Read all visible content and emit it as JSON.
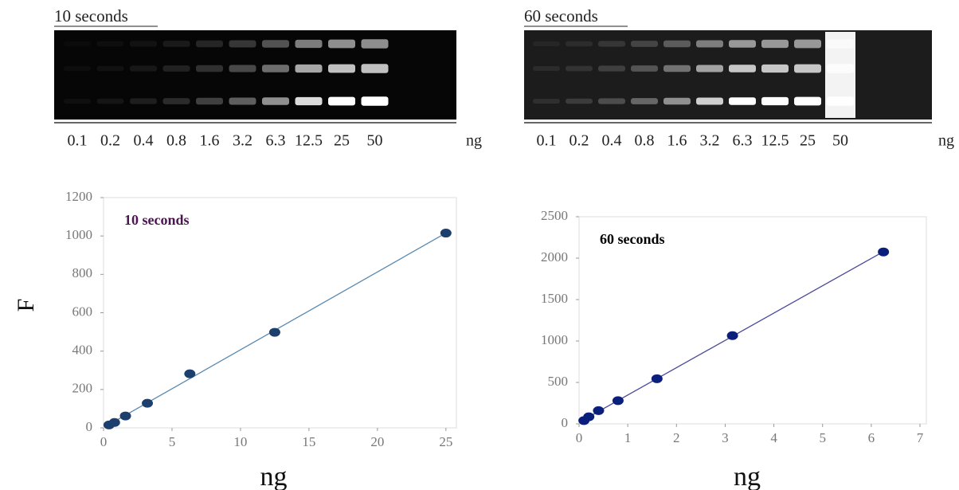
{
  "gels": [
    {
      "title": "10 seconds",
      "lanes": [
        "0.1",
        "0.2",
        "0.4",
        "0.8",
        "1.6",
        "3.2",
        "6.3",
        "12.5",
        "25",
        "50"
      ],
      "unit": "ng"
    },
    {
      "title": "60 seconds",
      "lanes": [
        "0.1",
        "0.2",
        "0.4",
        "0.8",
        "1.6",
        "3.2",
        "6.3",
        "12.5",
        "25",
        "50"
      ],
      "unit": "ng"
    }
  ],
  "chart_data": [
    {
      "type": "scatter",
      "annotation": "10 seconds",
      "annotation_color": "#4b1550",
      "xlabel": "ng",
      "ylabel": "F",
      "x": [
        0.4,
        0.8,
        1.6,
        3.2,
        6.3,
        12.5,
        25
      ],
      "values": [
        15,
        28,
        62,
        128,
        282,
        498,
        1015
      ],
      "color": "#1c3f6e",
      "trendline_color": "#5a8ab0",
      "xlim": [
        0,
        25.3
      ],
      "ylim": [
        0,
        1200
      ],
      "xticks": [
        0,
        5,
        10,
        15,
        20,
        25
      ],
      "yticks": [
        0,
        200,
        400,
        600,
        800,
        1000,
        1200
      ]
    },
    {
      "type": "scatter",
      "annotation": "60 seconds",
      "annotation_color": "#000000",
      "xlabel": "ng",
      "x": [
        0.1,
        0.2,
        0.4,
        0.8,
        1.6,
        3.15,
        6.25
      ],
      "values": [
        40,
        85,
        160,
        280,
        545,
        1065,
        2075
      ],
      "color": "#0a1f7c",
      "trendline_color": "#4a4a9a",
      "xlim": [
        0,
        7
      ],
      "ylim": [
        0,
        2500
      ],
      "xticks": [
        0,
        1,
        2,
        3,
        4,
        5,
        6,
        7
      ],
      "yticks": [
        0,
        500,
        1000,
        1500,
        2000,
        2500
      ]
    }
  ]
}
